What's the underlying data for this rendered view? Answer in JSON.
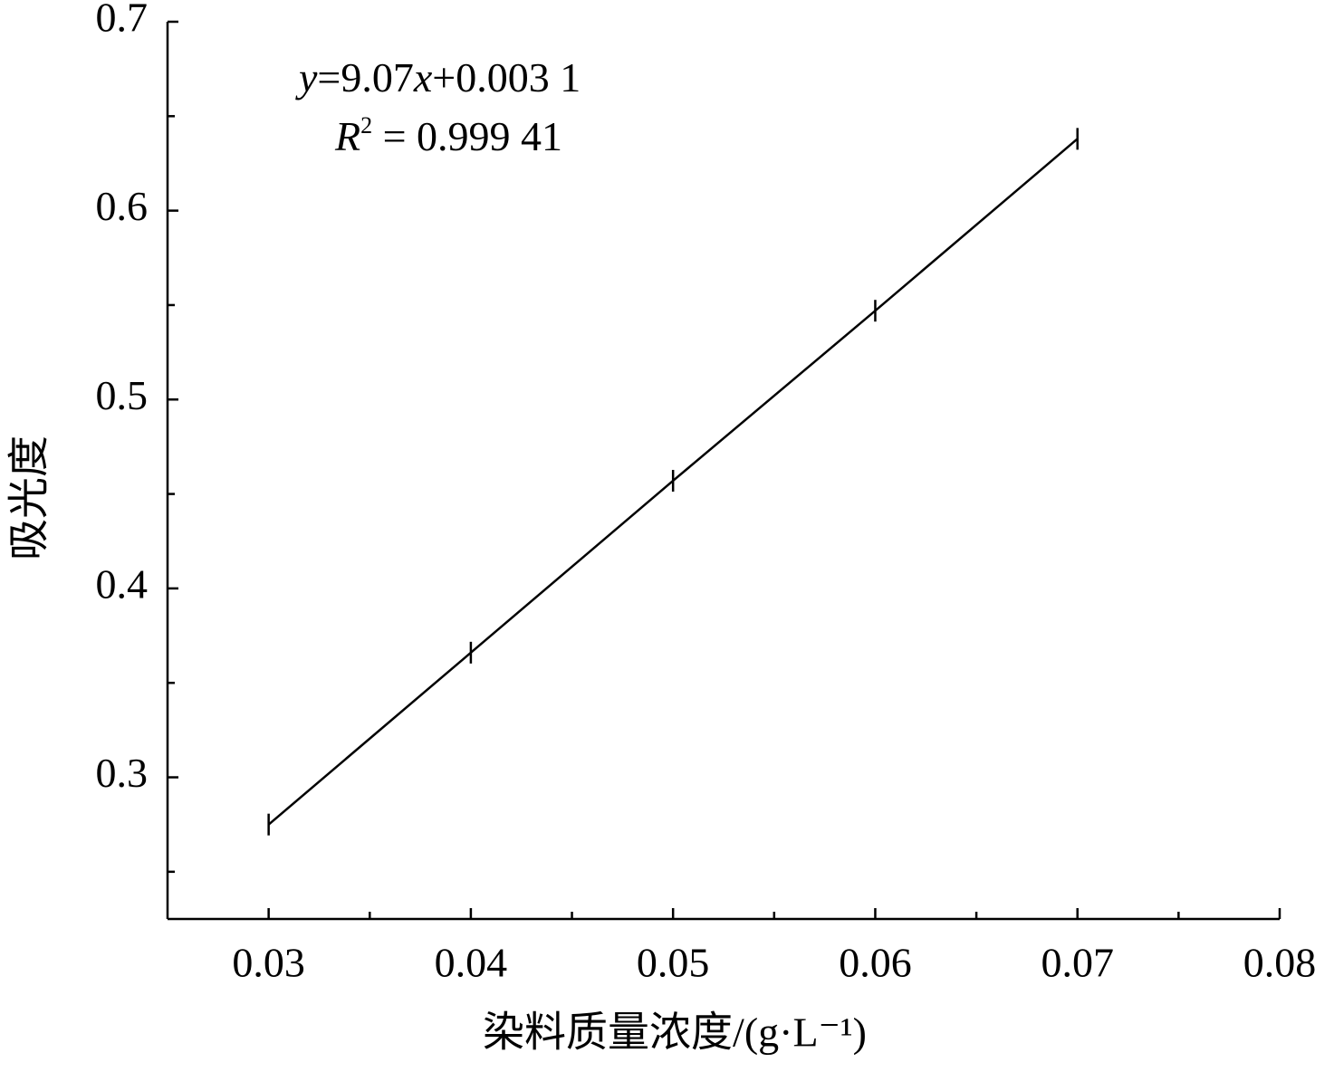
{
  "chart_data": {
    "type": "line",
    "x_label": "染料质量浓度/(g·L⁻¹)",
    "y_label": "吸光度",
    "annotations": [
      [
        "y",
        "=9.07",
        "x",
        "+0.003 1"
      ],
      [
        "R",
        "2",
        " = 0.999 41"
      ]
    ],
    "x": [
      0.03,
      0.04,
      0.05,
      0.06,
      0.07
    ],
    "series": [
      {
        "color": "#000000",
        "values": [
          0.275,
          0.366,
          0.457,
          0.547,
          0.638
        ]
      }
    ],
    "xlim": [
      0.025,
      0.08
    ],
    "xticks": [
      0.03,
      0.04,
      0.05,
      0.06,
      0.07,
      0.08
    ],
    "xminorticks": [
      0.035,
      0.045,
      0.055,
      0.065,
      0.075
    ],
    "ylim": [
      0.225,
      0.7
    ],
    "yticks": [
      0.3,
      0.4,
      0.5,
      0.6,
      0.7
    ],
    "yminorticks": [
      0.25,
      0.35,
      0.45,
      0.55,
      0.65
    ],
    "grid": false
  }
}
